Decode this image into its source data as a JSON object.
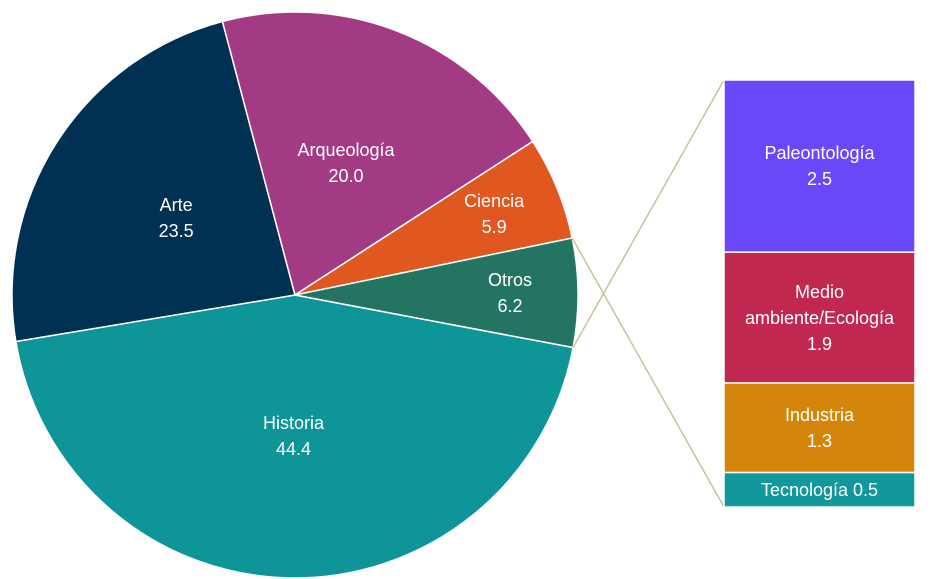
{
  "chart_data": {
    "type": "pie-of-bar",
    "categories": [
      "Historia",
      "Arte",
      "Arqueología",
      "Ciencia",
      "Otros"
    ],
    "values": [
      44.4,
      23.5,
      20.0,
      5.9,
      6.2
    ],
    "value_labels": [
      "44.4",
      "23.5",
      "20.0",
      "5.9",
      "6.2"
    ],
    "colors": [
      "#0e9597",
      "#003152",
      "#a33a84",
      "#e0571f",
      "#237461"
    ],
    "bar": {
      "categories": [
        "Paleontología",
        "Medio ambiente/Ecología",
        "Industria",
        "Tecnología"
      ],
      "values": [
        2.5,
        1.9,
        1.3,
        0.5
      ],
      "colors": [
        "#6b47fc",
        "#c0284f",
        "#d4860b",
        "#12989a"
      ]
    }
  }
}
